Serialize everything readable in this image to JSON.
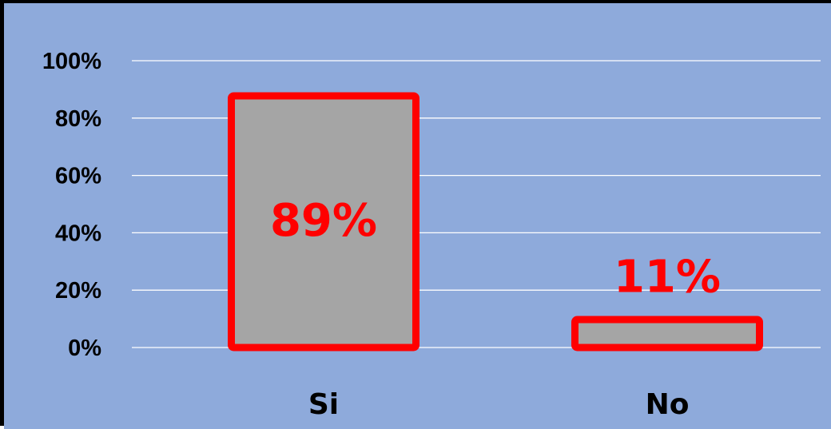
{
  "chart_data": {
    "type": "bar",
    "categories": [
      "Si",
      "No"
    ],
    "values": [
      89,
      11
    ],
    "data_labels": [
      "89%",
      "11%"
    ],
    "y_ticks": [
      "0%",
      "20%",
      "40%",
      "60%",
      "80%",
      "100%"
    ],
    "ylim": [
      0,
      100
    ],
    "title": "",
    "xlabel": "",
    "ylabel": "",
    "grid": true,
    "colors": {
      "background": "#8eaadb",
      "bar_fill": "#a5a5a5",
      "bar_border": "#ff0000",
      "data_label": "#ff0000",
      "gridline": "#ffffff"
    }
  }
}
